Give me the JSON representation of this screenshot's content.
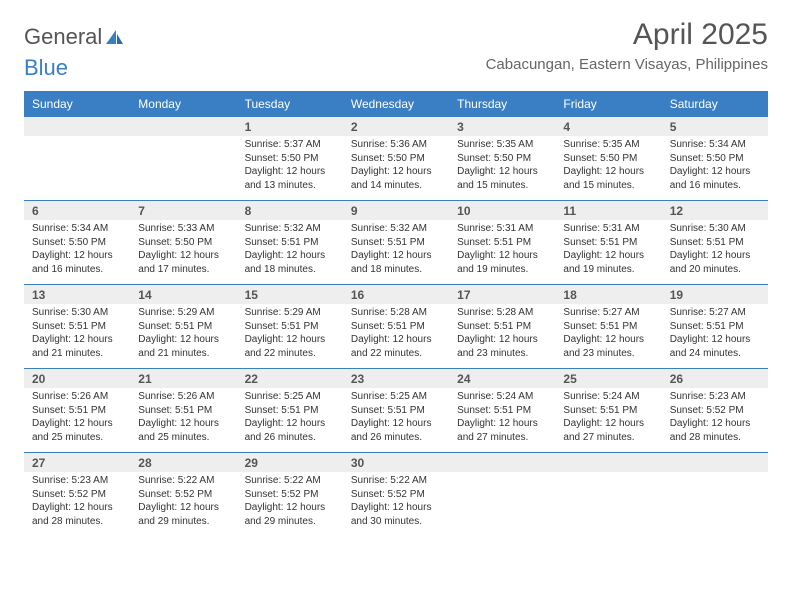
{
  "logo": {
    "part1": "General",
    "part2": "Blue"
  },
  "title": "April 2025",
  "location": "Cabacungan, Eastern Visayas, Philippines",
  "colors": {
    "header_bg": "#3a7fc4",
    "header_text": "#ffffff",
    "daynum_bg": "#eeeeee",
    "body_text": "#333333",
    "title_text": "#555555",
    "row_border": "#3a7fc4"
  },
  "fonts": {
    "title_size_pt": 22,
    "location_size_pt": 12,
    "dayname_size_pt": 9,
    "daynum_size_pt": 9,
    "cell_size_pt": 8
  },
  "day_names": [
    "Sunday",
    "Monday",
    "Tuesday",
    "Wednesday",
    "Thursday",
    "Friday",
    "Saturday"
  ],
  "weeks": [
    {
      "nums": [
        "",
        "",
        "1",
        "2",
        "3",
        "4",
        "5"
      ],
      "cells": [
        null,
        null,
        {
          "sunrise": "Sunrise: 5:37 AM",
          "sunset": "Sunset: 5:50 PM",
          "daylight": "Daylight: 12 hours and 13 minutes."
        },
        {
          "sunrise": "Sunrise: 5:36 AM",
          "sunset": "Sunset: 5:50 PM",
          "daylight": "Daylight: 12 hours and 14 minutes."
        },
        {
          "sunrise": "Sunrise: 5:35 AM",
          "sunset": "Sunset: 5:50 PM",
          "daylight": "Daylight: 12 hours and 15 minutes."
        },
        {
          "sunrise": "Sunrise: 5:35 AM",
          "sunset": "Sunset: 5:50 PM",
          "daylight": "Daylight: 12 hours and 15 minutes."
        },
        {
          "sunrise": "Sunrise: 5:34 AM",
          "sunset": "Sunset: 5:50 PM",
          "daylight": "Daylight: 12 hours and 16 minutes."
        }
      ]
    },
    {
      "nums": [
        "6",
        "7",
        "8",
        "9",
        "10",
        "11",
        "12"
      ],
      "cells": [
        {
          "sunrise": "Sunrise: 5:34 AM",
          "sunset": "Sunset: 5:50 PM",
          "daylight": "Daylight: 12 hours and 16 minutes."
        },
        {
          "sunrise": "Sunrise: 5:33 AM",
          "sunset": "Sunset: 5:50 PM",
          "daylight": "Daylight: 12 hours and 17 minutes."
        },
        {
          "sunrise": "Sunrise: 5:32 AM",
          "sunset": "Sunset: 5:51 PM",
          "daylight": "Daylight: 12 hours and 18 minutes."
        },
        {
          "sunrise": "Sunrise: 5:32 AM",
          "sunset": "Sunset: 5:51 PM",
          "daylight": "Daylight: 12 hours and 18 minutes."
        },
        {
          "sunrise": "Sunrise: 5:31 AM",
          "sunset": "Sunset: 5:51 PM",
          "daylight": "Daylight: 12 hours and 19 minutes."
        },
        {
          "sunrise": "Sunrise: 5:31 AM",
          "sunset": "Sunset: 5:51 PM",
          "daylight": "Daylight: 12 hours and 19 minutes."
        },
        {
          "sunrise": "Sunrise: 5:30 AM",
          "sunset": "Sunset: 5:51 PM",
          "daylight": "Daylight: 12 hours and 20 minutes."
        }
      ]
    },
    {
      "nums": [
        "13",
        "14",
        "15",
        "16",
        "17",
        "18",
        "19"
      ],
      "cells": [
        {
          "sunrise": "Sunrise: 5:30 AM",
          "sunset": "Sunset: 5:51 PM",
          "daylight": "Daylight: 12 hours and 21 minutes."
        },
        {
          "sunrise": "Sunrise: 5:29 AM",
          "sunset": "Sunset: 5:51 PM",
          "daylight": "Daylight: 12 hours and 21 minutes."
        },
        {
          "sunrise": "Sunrise: 5:29 AM",
          "sunset": "Sunset: 5:51 PM",
          "daylight": "Daylight: 12 hours and 22 minutes."
        },
        {
          "sunrise": "Sunrise: 5:28 AM",
          "sunset": "Sunset: 5:51 PM",
          "daylight": "Daylight: 12 hours and 22 minutes."
        },
        {
          "sunrise": "Sunrise: 5:28 AM",
          "sunset": "Sunset: 5:51 PM",
          "daylight": "Daylight: 12 hours and 23 minutes."
        },
        {
          "sunrise": "Sunrise: 5:27 AM",
          "sunset": "Sunset: 5:51 PM",
          "daylight": "Daylight: 12 hours and 23 minutes."
        },
        {
          "sunrise": "Sunrise: 5:27 AM",
          "sunset": "Sunset: 5:51 PM",
          "daylight": "Daylight: 12 hours and 24 minutes."
        }
      ]
    },
    {
      "nums": [
        "20",
        "21",
        "22",
        "23",
        "24",
        "25",
        "26"
      ],
      "cells": [
        {
          "sunrise": "Sunrise: 5:26 AM",
          "sunset": "Sunset: 5:51 PM",
          "daylight": "Daylight: 12 hours and 25 minutes."
        },
        {
          "sunrise": "Sunrise: 5:26 AM",
          "sunset": "Sunset: 5:51 PM",
          "daylight": "Daylight: 12 hours and 25 minutes."
        },
        {
          "sunrise": "Sunrise: 5:25 AM",
          "sunset": "Sunset: 5:51 PM",
          "daylight": "Daylight: 12 hours and 26 minutes."
        },
        {
          "sunrise": "Sunrise: 5:25 AM",
          "sunset": "Sunset: 5:51 PM",
          "daylight": "Daylight: 12 hours and 26 minutes."
        },
        {
          "sunrise": "Sunrise: 5:24 AM",
          "sunset": "Sunset: 5:51 PM",
          "daylight": "Daylight: 12 hours and 27 minutes."
        },
        {
          "sunrise": "Sunrise: 5:24 AM",
          "sunset": "Sunset: 5:51 PM",
          "daylight": "Daylight: 12 hours and 27 minutes."
        },
        {
          "sunrise": "Sunrise: 5:23 AM",
          "sunset": "Sunset: 5:52 PM",
          "daylight": "Daylight: 12 hours and 28 minutes."
        }
      ]
    },
    {
      "nums": [
        "27",
        "28",
        "29",
        "30",
        "",
        "",
        ""
      ],
      "cells": [
        {
          "sunrise": "Sunrise: 5:23 AM",
          "sunset": "Sunset: 5:52 PM",
          "daylight": "Daylight: 12 hours and 28 minutes."
        },
        {
          "sunrise": "Sunrise: 5:22 AM",
          "sunset": "Sunset: 5:52 PM",
          "daylight": "Daylight: 12 hours and 29 minutes."
        },
        {
          "sunrise": "Sunrise: 5:22 AM",
          "sunset": "Sunset: 5:52 PM",
          "daylight": "Daylight: 12 hours and 29 minutes."
        },
        {
          "sunrise": "Sunrise: 5:22 AM",
          "sunset": "Sunset: 5:52 PM",
          "daylight": "Daylight: 12 hours and 30 minutes."
        },
        null,
        null,
        null
      ]
    }
  ]
}
